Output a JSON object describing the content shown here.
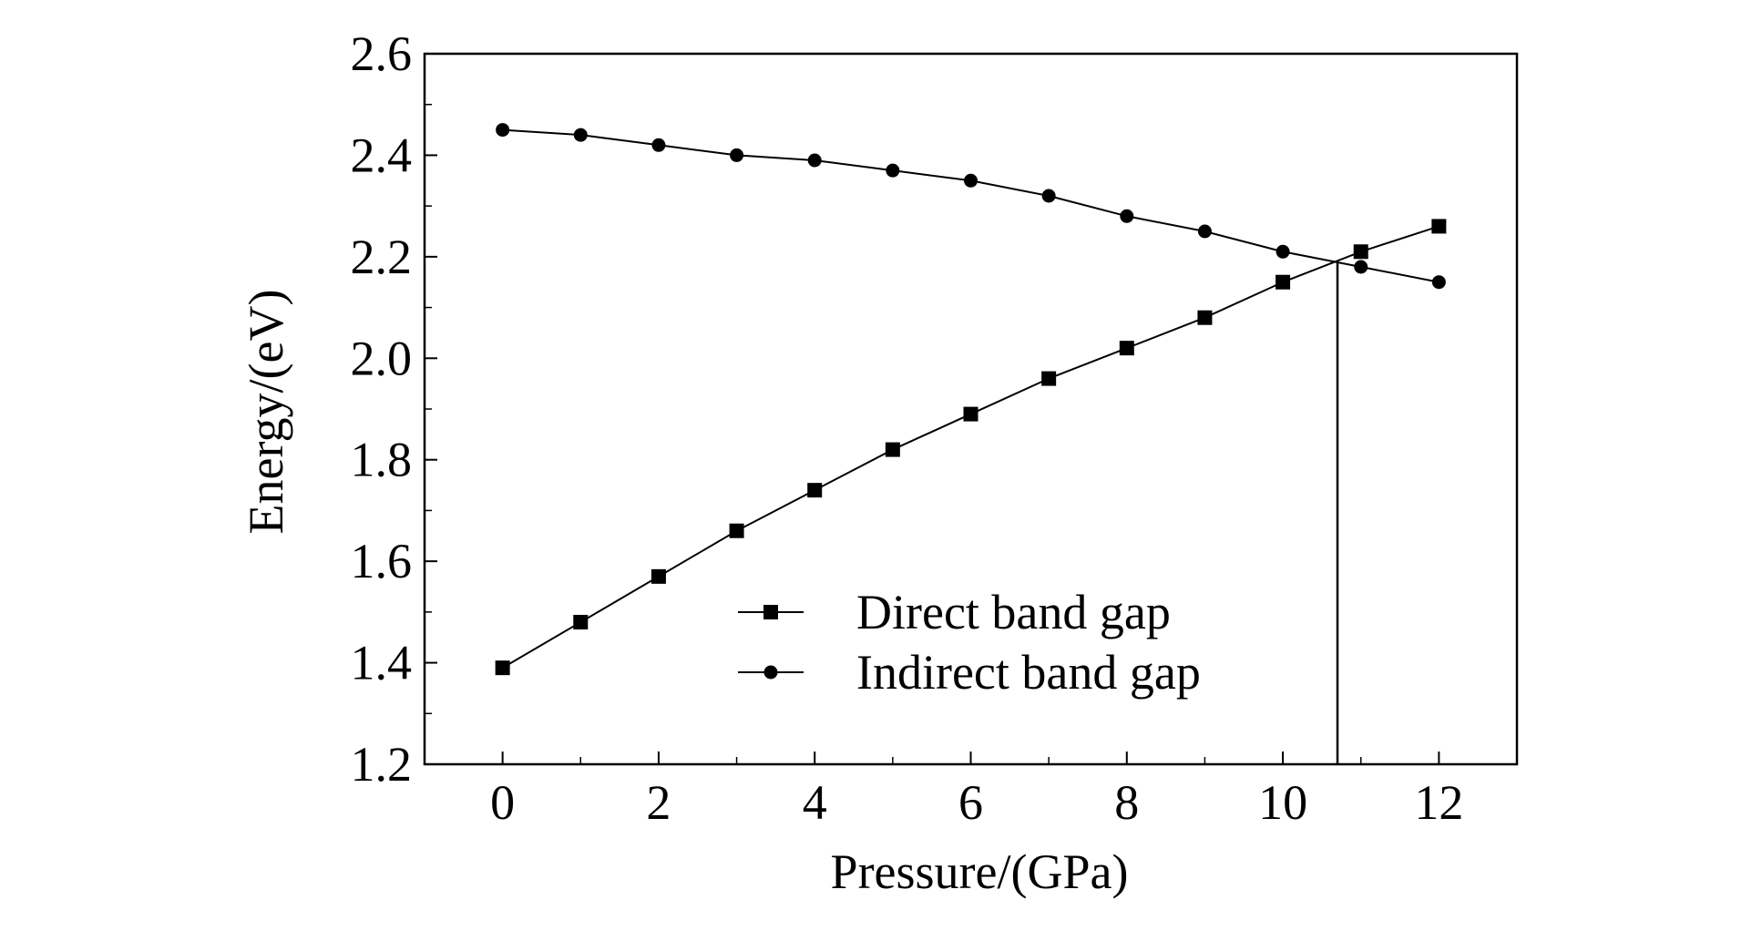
{
  "chart_data": {
    "type": "line",
    "title": "",
    "xlabel": "Pressure/(GPa)",
    "ylabel": "Energy/(eV)",
    "xlim": [
      -1,
      13
    ],
    "ylim": [
      1.2,
      2.6
    ],
    "xticks": [
      0,
      2,
      4,
      6,
      8,
      10,
      12
    ],
    "xtick_labels": [
      "0",
      "2",
      "4",
      "6",
      "8",
      "10",
      "12"
    ],
    "yticks": [
      1.2,
      1.4,
      1.6,
      1.8,
      2.0,
      2.2,
      2.4,
      2.6
    ],
    "ytick_labels": [
      "1.2",
      "1.4",
      "1.6",
      "1.8",
      "2.0",
      "2.2",
      "2.4",
      "2.6"
    ],
    "grid": false,
    "legend_position": "bottom-center",
    "x": [
      0,
      1,
      2,
      3,
      4,
      5,
      6,
      7,
      8,
      9,
      10,
      11,
      12
    ],
    "series": [
      {
        "name": "Direct band gap",
        "marker": "square",
        "values": [
          1.39,
          1.48,
          1.57,
          1.66,
          1.74,
          1.82,
          1.89,
          1.96,
          2.02,
          2.08,
          2.15,
          2.21,
          2.26
        ]
      },
      {
        "name": "Indirect band gap",
        "marker": "circle",
        "values": [
          2.45,
          2.44,
          2.42,
          2.4,
          2.39,
          2.37,
          2.35,
          2.32,
          2.28,
          2.25,
          2.21,
          2.18,
          2.15
        ]
      }
    ],
    "annotations": [
      {
        "type": "vertical-line",
        "x": 10.7,
        "y_from": 1.2,
        "y_to": 2.19,
        "description": "crossover pressure"
      }
    ],
    "colors": {
      "line": "#000000",
      "background": "#ffffff"
    }
  }
}
